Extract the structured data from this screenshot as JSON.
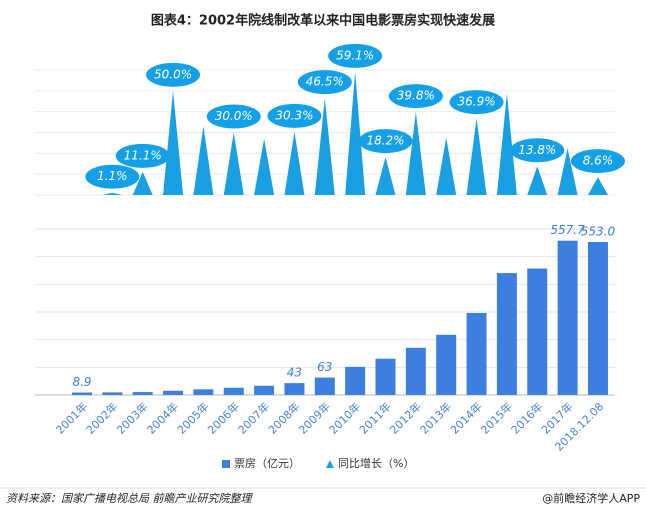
{
  "chart_data": {
    "type": "bar",
    "title": "图表4：2002年院线制改革以来中国电影票房实现快速发展",
    "categories": [
      "2001年",
      "2002年",
      "2003年",
      "2004年",
      "2005年",
      "2006年",
      "2007年",
      "2008年",
      "2009年",
      "2010年",
      "2011年",
      "2012年",
      "2013年",
      "2014年",
      "2015年",
      "2016年",
      "2017年",
      "2018.12.08"
    ],
    "series": [
      {
        "name": "票房（亿元）",
        "type": "bar",
        "color": "#3d7fdf",
        "values": [
          8.9,
          9.5,
          10.7,
          15.2,
          20.5,
          26.2,
          33.3,
          43,
          63,
          101.7,
          131.2,
          170.7,
          217.7,
          296.4,
          440.7,
          457.1,
          557.7,
          553.0
        ],
        "value_labels": [
          "8.9",
          null,
          null,
          null,
          null,
          null,
          null,
          "43",
          "63",
          null,
          null,
          null,
          null,
          null,
          null,
          null,
          "557.7",
          "553.0"
        ]
      },
      {
        "name": "同比增长（%）",
        "type": "triangle",
        "axis": "y2",
        "color": "#1a9fe3",
        "values": [
          null,
          1.1,
          11.1,
          50.0,
          33.0,
          30.0,
          27.0,
          30.3,
          46.5,
          59.1,
          18.2,
          39.8,
          27.5,
          36.9,
          48.7,
          13.8,
          22.3,
          8.6
        ],
        "value_labels": [
          null,
          "1.1%",
          "11.1%",
          "50.0%",
          null,
          "30.0%",
          null,
          "30.3%",
          "46.5%",
          "59.1%",
          "18.2%",
          "39.8%",
          null,
          "36.9%",
          null,
          "13.8%",
          null,
          "8.6%"
        ]
      }
    ],
    "ylim": [
      0,
      600
    ],
    "yticks": [
      0,
      100,
      200,
      300,
      400,
      500,
      600
    ],
    "y2lim": [
      0,
      60
    ],
    "y2ticks": [
      0,
      10,
      20,
      30,
      40,
      50,
      60
    ],
    "grid": true,
    "source": "资料来源：国家广播电视总局  前瞻产业研究院整理",
    "credit": "@前瞻经济学人APP"
  }
}
